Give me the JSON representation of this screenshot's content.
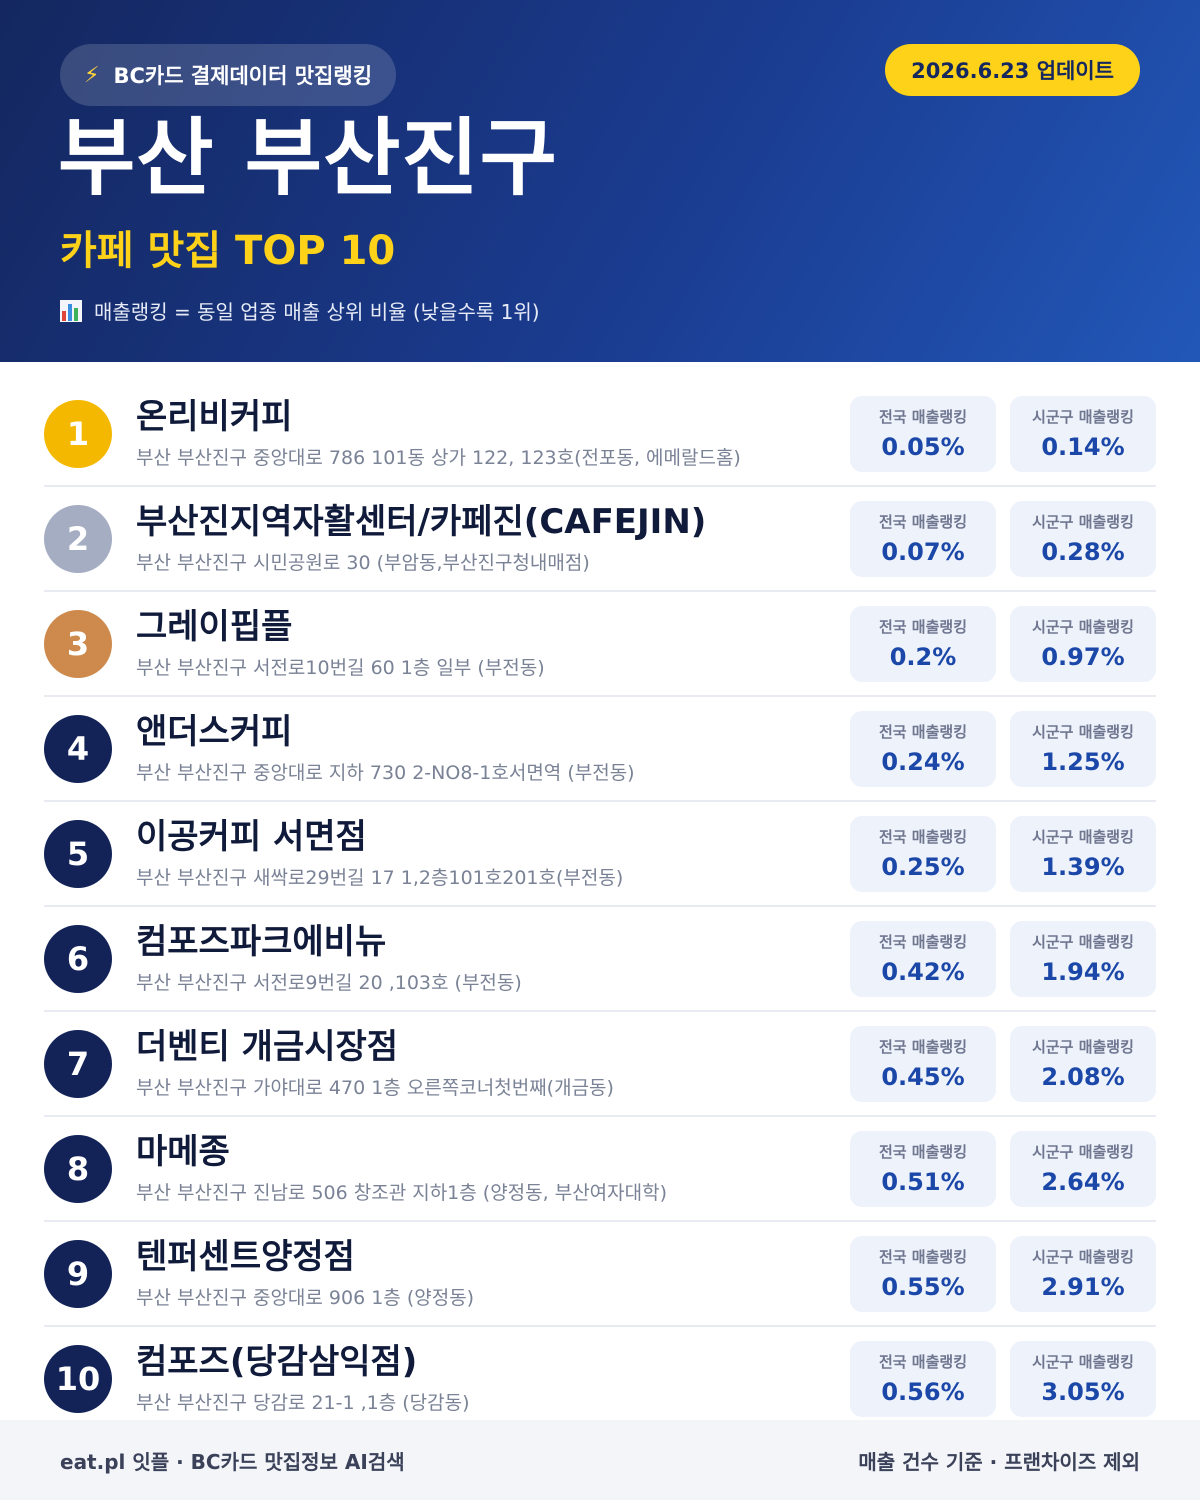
{
  "header": {
    "pill_label": "BC카드 결제데이터 맛집랭킹",
    "update_label": "2026.6.23 업데이트",
    "region_title": "부산 부산진구",
    "subtitle": "카페 맛집 TOP 10",
    "legend_text": "매출랭킹 = 동일 업종 매출 상위 비율 (낮을수록 1위)",
    "icons": {
      "pill": "lightning-bolt-icon",
      "legend": "bar-chart-icon"
    }
  },
  "colors": {
    "gold": "#f5b800",
    "silver": "#a4adc2",
    "bronze": "#cd8a4c",
    "navy": "#132358",
    "accent_yellow": "#ffd21a",
    "value_blue": "#1a47a8"
  },
  "stat_labels": {
    "national": "전국 매출랭킹",
    "district": "시군구 매출랭킹"
  },
  "items": [
    {
      "rank": "1",
      "name": "온리비커피",
      "address": "부산 부산진구 중앙대로 786 101동 상가 122, 123호(전포동, 에메랄드홈)",
      "national": "0.05%",
      "district": "0.14%",
      "badge_color": "#f5b800"
    },
    {
      "rank": "2",
      "name": "부산진지역자활센터/카페진(CAFEJIN)",
      "address": "부산 부산진구 시민공원로 30 (부암동,부산진구청내매점)",
      "national": "0.07%",
      "district": "0.28%",
      "badge_color": "#a4adc2"
    },
    {
      "rank": "3",
      "name": "그레이핍플",
      "address": "부산 부산진구 서전로10번길 60 1층 일부 (부전동)",
      "national": "0.2%",
      "district": "0.97%",
      "badge_color": "#cd8a4c"
    },
    {
      "rank": "4",
      "name": "앤더스커피",
      "address": "부산 부산진구 중앙대로 지하 730 2-NO8-1호서면역 (부전동)",
      "national": "0.24%",
      "district": "1.25%",
      "badge_color": "#132358"
    },
    {
      "rank": "5",
      "name": "이공커피 서면점",
      "address": "부산 부산진구 새싹로29번길 17 1,2층101호201호(부전동)",
      "national": "0.25%",
      "district": "1.39%",
      "badge_color": "#132358"
    },
    {
      "rank": "6",
      "name": "컴포즈파크에비뉴",
      "address": "부산 부산진구 서전로9번길 20 ,103호 (부전동)",
      "national": "0.42%",
      "district": "1.94%",
      "badge_color": "#132358"
    },
    {
      "rank": "7",
      "name": "더벤티 개금시장점",
      "address": "부산 부산진구 가야대로 470 1층 오른쪽코너첫번째(개금동)",
      "national": "0.45%",
      "district": "2.08%",
      "badge_color": "#132358"
    },
    {
      "rank": "8",
      "name": "마메종",
      "address": "부산 부산진구 진남로 506 창조관 지하1층 (양정동, 부산여자대학)",
      "national": "0.51%",
      "district": "2.64%",
      "badge_color": "#132358"
    },
    {
      "rank": "9",
      "name": "텐퍼센트양정점",
      "address": "부산 부산진구 중앙대로 906 1층 (양정동)",
      "national": "0.55%",
      "district": "2.91%",
      "badge_color": "#132358"
    },
    {
      "rank": "10",
      "name": "컴포즈(당감삼익점)",
      "address": "부산 부산진구 당감로 21-1 ,1층 (당감동)",
      "national": "0.56%",
      "district": "3.05%",
      "badge_color": "#132358"
    }
  ],
  "footer": {
    "left": "eat.pl 잇플 · BC카드 맛집정보 AI검색",
    "right": "매출 건수 기준 · 프랜차이즈 제외"
  }
}
